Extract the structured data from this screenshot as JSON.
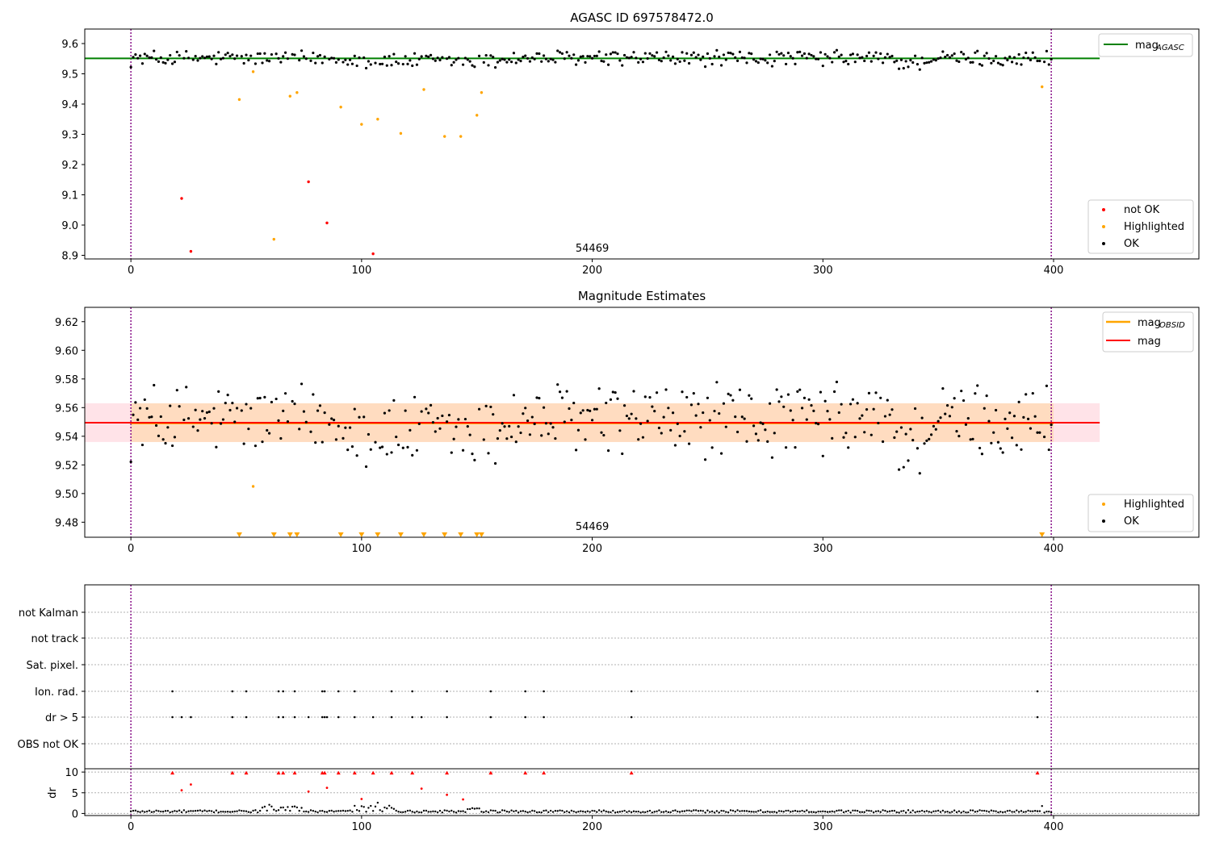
{
  "colors": {
    "ok": "#000000",
    "not_ok": "#ff0000",
    "highlighted": "#ffa500",
    "mag_agasc": "#008000",
    "mag_obsid": "#ffa500",
    "mag": "#ff0000",
    "band_mag": "#ffc0cb",
    "band_obsid": "#ffdab9",
    "boundary": "#800080"
  },
  "chart_data": [
    {
      "type": "scatter",
      "title": "AGASC ID 697578472.0",
      "annotation": "54469",
      "xlim": [
        -20,
        463
      ],
      "ylim": [
        8.888,
        9.648
      ],
      "xticks": [
        0,
        100,
        200,
        300,
        400
      ],
      "yticks": [
        8.9,
        9.0,
        9.1,
        9.2,
        9.3,
        9.4,
        9.5,
        9.6
      ],
      "ytick_labels": [
        "8.9",
        "9.0",
        "9.1",
        "9.2",
        "9.3",
        "9.4",
        "9.5",
        "9.6"
      ],
      "vlines": [
        0,
        399
      ],
      "hline": {
        "name": "mag_AGASC",
        "y": 9.551,
        "x": [
          -20,
          420
        ]
      },
      "legend_upper": [
        {
          "label": "mag",
          "sub": "AGASC",
          "kind": "line",
          "color": "#008000"
        }
      ],
      "legend_lower": [
        {
          "label": "not OK",
          "kind": "dot",
          "color": "#ff0000"
        },
        {
          "label": "Highlighted",
          "kind": "dot",
          "color": "#ffa500"
        },
        {
          "label": "OK",
          "kind": "dot",
          "color": "#000000"
        }
      ],
      "series": [
        {
          "name": "not OK",
          "points": [
            [
              22,
              9.088
            ],
            [
              26,
              8.913
            ],
            [
              77,
              9.143
            ],
            [
              85,
              9.007
            ],
            [
              105,
              8.905
            ]
          ]
        },
        {
          "name": "Highlighted",
          "points": [
            [
              47,
              9.415
            ],
            [
              53,
              9.507
            ],
            [
              62,
              8.953
            ],
            [
              69,
              9.426
            ],
            [
              72,
              9.438
            ],
            [
              91,
              9.39
            ],
            [
              100,
              9.333
            ],
            [
              107,
              9.35
            ],
            [
              117,
              9.303
            ],
            [
              127,
              9.448
            ],
            [
              136,
              9.293
            ],
            [
              143,
              9.293
            ],
            [
              150,
              9.363
            ],
            [
              152,
              9.438
            ],
            [
              395,
              9.457
            ]
          ]
        }
      ]
    },
    {
      "type": "scatter",
      "title": "Magnitude Estimates",
      "annotation": "54469",
      "xlim": [
        -20,
        463
      ],
      "ylim": [
        9.4695,
        9.63
      ],
      "xticks": [
        0,
        100,
        200,
        300,
        400
      ],
      "yticks": [
        9.48,
        9.5,
        9.52,
        9.54,
        9.56,
        9.58,
        9.6,
        9.62
      ],
      "ytick_labels": [
        "9.48",
        "9.50",
        "9.52",
        "9.54",
        "9.56",
        "9.58",
        "9.60",
        "9.62"
      ],
      "vlines": [
        0,
        399
      ],
      "mag_line": {
        "name": "mag",
        "y": 9.5495,
        "x": [
          -20,
          420
        ],
        "band": [
          9.536,
          9.563
        ]
      },
      "mag_obsid_line": {
        "name": "mag_OBSID",
        "y": 9.549,
        "x": [
          0,
          400
        ],
        "band": [
          9.536,
          9.563
        ]
      },
      "legend_upper": [
        {
          "label": "mag",
          "sub": "OBSID",
          "kind": "line",
          "color": "#ffa500"
        },
        {
          "label": "mag",
          "kind": "line",
          "color": "#ff0000"
        }
      ],
      "legend_lower": [
        {
          "label": "Highlighted",
          "kind": "dot",
          "color": "#ffa500"
        },
        {
          "label": "OK",
          "kind": "dot",
          "color": "#000000"
        }
      ],
      "highlighted_points": [
        [
          53,
          9.505
        ]
      ],
      "offscale_markers_x": [
        47,
        62,
        69,
        72,
        91,
        100,
        107,
        117,
        127,
        136,
        143,
        150,
        152,
        395
      ]
    },
    {
      "type": "scatter",
      "xlim": [
        -20,
        463
      ],
      "xticks": [
        0,
        100,
        200,
        300,
        400
      ],
      "vlines": [
        0,
        399
      ],
      "flag_rows": [
        "not Kalman",
        "not track",
        "Sat. pixel.",
        "Ion. rad.",
        "dr > 5",
        "OBS not OK"
      ],
      "flags": {
        "Ion. rad.": [
          18,
          44,
          50,
          64,
          66,
          71,
          83,
          84,
          90,
          97,
          113,
          122,
          137,
          156,
          171,
          179,
          217,
          393
        ],
        "dr > 5": [
          18,
          22,
          26,
          44,
          50,
          64,
          66,
          71,
          77,
          83,
          84,
          85,
          90,
          97,
          105,
          113,
          122,
          126,
          137,
          156,
          171,
          179,
          217,
          393
        ]
      },
      "dr_ylabel": "dr",
      "dr_ylim": [
        -0.5,
        10.8
      ],
      "dr_yticks": [
        0,
        5,
        10
      ],
      "dr_ytick_labels": [
        "0",
        "5",
        "10"
      ],
      "dr_not_ok": [
        [
          22,
          5.6
        ],
        [
          26,
          7.0
        ],
        [
          77,
          5.3
        ],
        [
          85,
          6.2
        ],
        [
          100,
          3.5
        ],
        [
          126,
          6.0
        ],
        [
          137,
          4.5
        ],
        [
          144,
          3.4
        ]
      ],
      "dr_clipped": [
        18,
        44,
        50,
        64,
        66,
        71,
        83,
        84,
        90,
        97,
        105,
        113,
        122,
        137,
        156,
        171,
        179,
        217,
        393
      ]
    }
  ]
}
